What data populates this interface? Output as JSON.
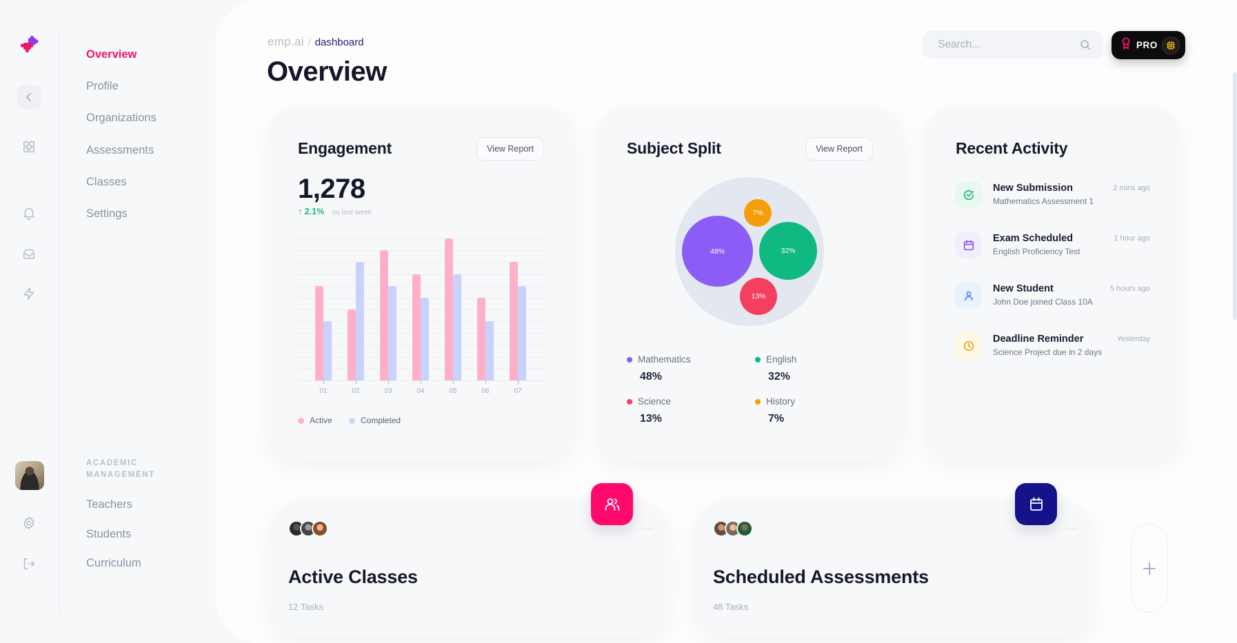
{
  "app": {
    "brand": "emp.ai",
    "brand_colors": {
      "primary": "#f0146c",
      "secondary": "#8b5cf6"
    }
  },
  "rail": {
    "collapse_icon": "chevron-left-icon",
    "icons": [
      "dashboard-grid-icon",
      "bell-icon",
      "inbox-icon",
      "bolt-icon"
    ],
    "bottom_icons": [
      "gear-icon",
      "logout-icon"
    ]
  },
  "nav": {
    "items": [
      {
        "label": "Overview",
        "active": true
      },
      {
        "label": "Profile"
      },
      {
        "label": "Organizations"
      },
      {
        "label": "Assessments"
      },
      {
        "label": "Classes"
      },
      {
        "label": "Settings"
      }
    ],
    "section_title_line1": "ACADEMIC",
    "section_title_line2": "MANAGEMENT",
    "section_items": [
      {
        "label": "Teachers"
      },
      {
        "label": "Students"
      },
      {
        "label": "Curriculum"
      }
    ]
  },
  "header": {
    "breadcrumb_root": "emp.ai",
    "breadcrumb_sep": "/",
    "breadcrumb_current": "dashboard",
    "title": "Overview",
    "search_placeholder": "Search...",
    "pro_label": "PRO"
  },
  "engagement": {
    "title": "Engagement",
    "view_report": "View Report",
    "value": "1,278",
    "delta": "↑ 2.1%",
    "delta_note": "vs last week",
    "legend": [
      {
        "label": "Active",
        "color": "#ffb0c8"
      },
      {
        "label": "Completed",
        "color": "#c9d2fb"
      }
    ]
  },
  "subject_split": {
    "title": "Subject Split",
    "view_report": "View Report",
    "items": [
      {
        "label": "Mathematics",
        "value": "48%",
        "color": "#8b5cf6"
      },
      {
        "label": "English",
        "value": "32%",
        "color": "#10b981"
      },
      {
        "label": "Science",
        "value": "13%",
        "color": "#f43f5e"
      },
      {
        "label": "History",
        "value": "7%",
        "color": "#f59e0b"
      }
    ]
  },
  "recent_activity": {
    "title": "Recent Activity",
    "items": [
      {
        "title": "New Submission",
        "subtitle": "Mathematics Assessment 1",
        "time": "2 mins ago",
        "icon": "check-circle-icon"
      },
      {
        "title": "Exam Scheduled",
        "subtitle": "English Proficiency Test",
        "time": "1 hour ago",
        "icon": "calendar-icon"
      },
      {
        "title": "New Student",
        "subtitle": "John Doe joined Class 10A",
        "time": "5 hours ago",
        "icon": "user-icon"
      },
      {
        "title": "Deadline Reminder",
        "subtitle": "Science Project due in 2 days",
        "time": "Yesterday",
        "icon": "clock-icon"
      }
    ]
  },
  "bottom_cards": [
    {
      "title": "Active Classes",
      "subtitle": "12 Tasks",
      "more": "···",
      "icon": "users-icon",
      "accent": "#ff0a6c"
    },
    {
      "title": "Scheduled Assessments",
      "subtitle": "48 Tasks",
      "more": "···",
      "icon": "calendar-icon",
      "accent": "#15128a"
    }
  ],
  "add_button_icon": "plus-icon",
  "chart_data": [
    {
      "type": "bar",
      "title": "Engagement",
      "categories": [
        "01",
        "02",
        "03",
        "04",
        "05",
        "06",
        "07"
      ],
      "series": [
        {
          "name": "Active",
          "values": [
            8,
            6,
            11,
            9,
            12,
            7,
            10
          ],
          "color": "#ffb0c8"
        },
        {
          "name": "Completed",
          "values": [
            5,
            10,
            8,
            7,
            9,
            5,
            8
          ],
          "color": "#c9d2fb"
        }
      ],
      "xlabel": "",
      "ylabel": "",
      "ylim": [
        0,
        12
      ],
      "grid": true,
      "legend_position": "bottom-left"
    },
    {
      "type": "pie",
      "title": "Subject Split",
      "categories": [
        "Mathematics",
        "English",
        "Science",
        "History"
      ],
      "values": [
        48,
        32,
        13,
        7
      ],
      "colors": [
        "#8b5cf6",
        "#10b981",
        "#f43f5e",
        "#f59e0b"
      ],
      "style": "bubble",
      "legend_position": "bottom"
    }
  ]
}
